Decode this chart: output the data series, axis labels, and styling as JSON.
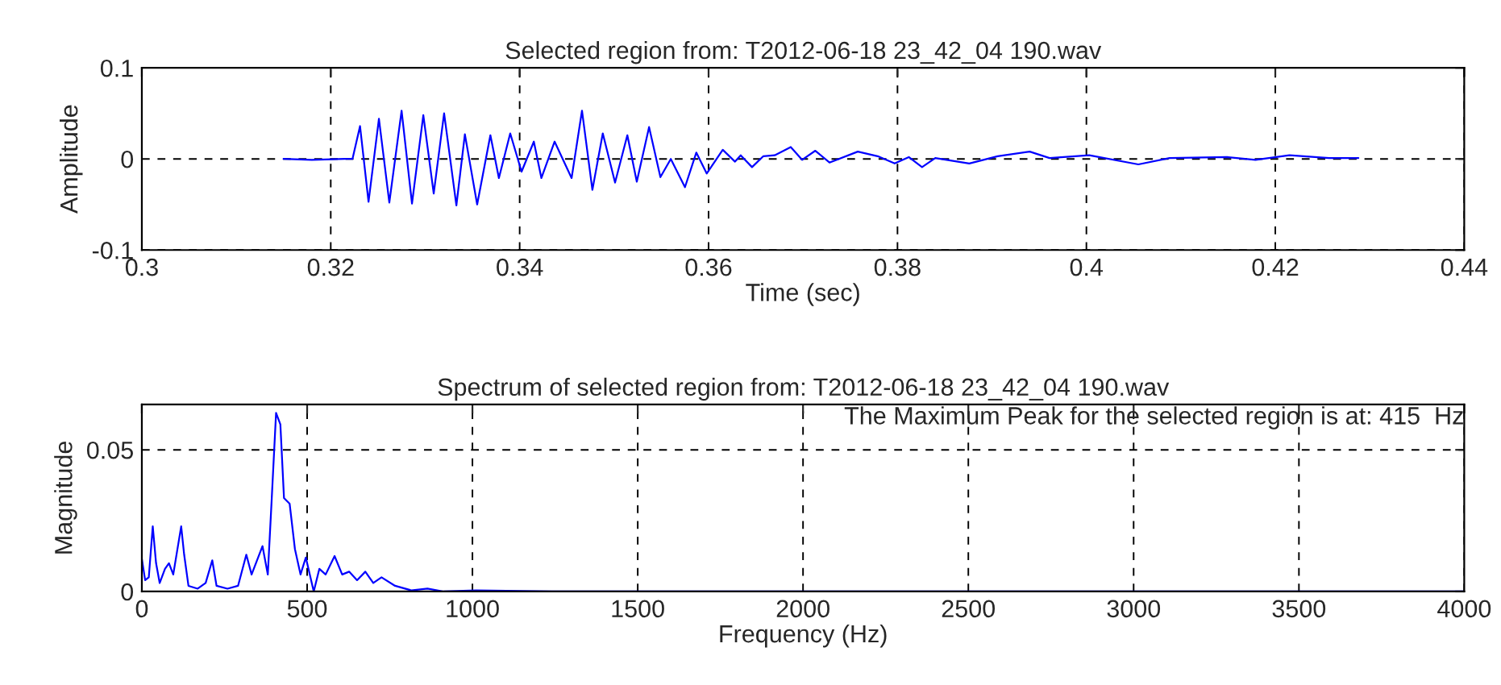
{
  "chart_data": [
    {
      "type": "line",
      "title": "Selected region from: T2012-06-18 23_42_04 190.wav",
      "xlabel": "Time (sec)",
      "ylabel": "Amplitude",
      "xlim": [
        0.3,
        0.44
      ],
      "xticks": [
        0.3,
        0.32,
        0.34,
        0.36,
        0.38,
        0.4,
        0.42,
        0.44
      ],
      "ylim": [
        -0.1,
        0.1
      ],
      "yticks": [
        -0.1,
        0,
        0.1
      ],
      "grid": true,
      "line_style": "solid",
      "marker": "none",
      "series": [
        {
          "color": "#0000ff",
          "x": [
            0.315,
            0.318,
            0.3215,
            0.3223,
            0.3231,
            0.324,
            0.3251,
            0.3262,
            0.3275,
            0.3286,
            0.3298,
            0.3309,
            0.332,
            0.3333,
            0.3342,
            0.3355,
            0.3369,
            0.3378,
            0.339,
            0.3402,
            0.3415,
            0.3423,
            0.3437,
            0.3455,
            0.3466,
            0.3477,
            0.3488,
            0.3501,
            0.3514,
            0.3524,
            0.3537,
            0.3549,
            0.356,
            0.3575,
            0.3587,
            0.3598,
            0.3615,
            0.3628,
            0.3634,
            0.3646,
            0.3658,
            0.367,
            0.3687,
            0.3699,
            0.3713,
            0.3728,
            0.3758,
            0.3779,
            0.3797,
            0.3812,
            0.3826,
            0.384,
            0.3876,
            0.3906,
            0.394,
            0.3961,
            0.4003,
            0.4055,
            0.4088,
            0.4149,
            0.4179,
            0.4215,
            0.4257,
            0.4288
          ],
          "values": [
            0,
            -0.001,
            0,
            0,
            0.036,
            -0.047,
            0.044,
            -0.048,
            0.053,
            -0.049,
            0.048,
            -0.038,
            0.05,
            -0.051,
            0.027,
            -0.05,
            0.026,
            -0.021,
            0.028,
            -0.014,
            0.019,
            -0.021,
            0.019,
            -0.021,
            0.053,
            -0.034,
            0.028,
            -0.026,
            0.026,
            -0.025,
            0.035,
            -0.02,
            0,
            -0.031,
            0.007,
            -0.016,
            0.01,
            -0.003,
            0.004,
            -0.009,
            0.003,
            0.004,
            0.013,
            -0.001,
            0.009,
            -0.004,
            0.008,
            0.003,
            -0.005,
            0.002,
            -0.009,
            0.001,
            -0.005,
            0.003,
            0.008,
            0.001,
            0.004,
            -0.006,
            0.001,
            0.002,
            -0.001,
            0.004,
            0.001,
            0.001
          ]
        }
      ]
    },
    {
      "type": "line",
      "title": "Spectrum of selected region from: T2012-06-18 23_42_04 190.wav",
      "xlabel": "Frequency (Hz)",
      "ylabel": "Magnitude",
      "annotations": [
        "The Maximum Peak for the selected region is at: 415  Hz"
      ],
      "xlim": [
        0,
        4000
      ],
      "xticks": [
        0,
        500,
        1000,
        1500,
        2000,
        2500,
        3000,
        3500,
        4000
      ],
      "ylim": [
        0,
        0.066
      ],
      "yticks": [
        0,
        0.05
      ],
      "grid": true,
      "line_style": "solid",
      "marker": "none",
      "series": [
        {
          "color": "#0000ff",
          "x": [
            0,
            10,
            21,
            33,
            43,
            54,
            70,
            82,
            95,
            119,
            128,
            141,
            169,
            193,
            213,
            226,
            259,
            291,
            316,
            332,
            365,
            381,
            393,
            406,
            419,
            430,
            447,
            463,
            480,
            496,
            520,
            537,
            556,
            583,
            606,
            627,
            651,
            676,
            700,
            725,
            766,
            815,
            864,
            913,
            1011,
            1241,
            4000
          ],
          "values": [
            0.0115,
            0.004,
            0.005,
            0.023,
            0.01,
            0.003,
            0.008,
            0.01,
            0.006,
            0.023,
            0.013,
            0.002,
            0.001,
            0.003,
            0.011,
            0.002,
            0.001,
            0.002,
            0.013,
            0.006,
            0.016,
            0.006,
            0.033,
            0.063,
            0.059,
            0.033,
            0.031,
            0.015,
            0.006,
            0.012,
            0,
            0.008,
            0.006,
            0.0125,
            0.006,
            0.007,
            0.004,
            0.007,
            0.003,
            0.005,
            0.002,
            0.0004,
            0.001,
            0,
            0.0004,
            0,
            0
          ]
        }
      ]
    }
  ]
}
